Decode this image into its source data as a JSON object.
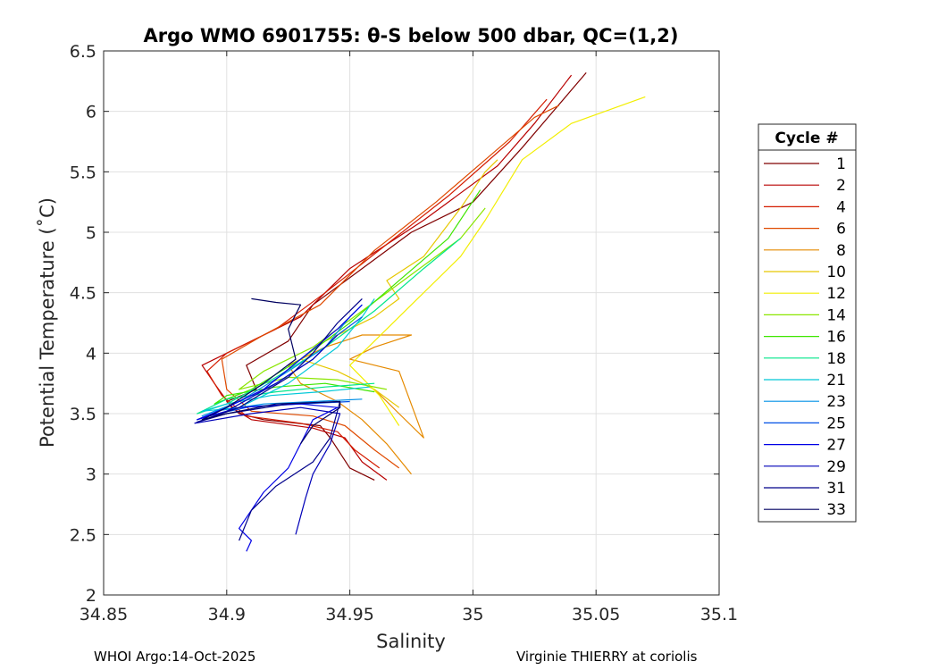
{
  "chart_data": {
    "type": "line",
    "title": "Argo WMO 6901755: θ-S below 500 dbar,  QC=(1,2)",
    "xlabel": "Salinity",
    "ylabel": "Potential Temperature (˚C)",
    "xlim": [
      34.85,
      35.1
    ],
    "ylim": [
      2,
      6.5
    ],
    "xticks": [
      34.85,
      34.9,
      34.95,
      35,
      35.05,
      35.1
    ],
    "xtick_labels": [
      "34.85",
      "34.9",
      "34.95",
      "35",
      "35.05",
      "35.1"
    ],
    "yticks": [
      2,
      2.5,
      3,
      3.5,
      4,
      4.5,
      5,
      5.5,
      6,
      6.5
    ],
    "ytick_labels": [
      "2",
      "2.5",
      "3",
      "3.5",
      "4",
      "4.5",
      "5",
      "5.5",
      "6",
      "6.5"
    ],
    "grid": true,
    "legend": {
      "title": "Cycle #",
      "placement": "outside-right"
    },
    "series": [
      {
        "name": "1",
        "color": "#800000",
        "points": [
          [
            34.96,
            2.95
          ],
          [
            34.95,
            3.05
          ],
          [
            34.942,
            3.3
          ],
          [
            34.938,
            3.4
          ],
          [
            34.915,
            3.45
          ],
          [
            34.905,
            3.5
          ],
          [
            34.9,
            3.6
          ],
          [
            34.912,
            3.7
          ],
          [
            34.908,
            3.9
          ],
          [
            34.925,
            4.1
          ],
          [
            34.935,
            4.4
          ],
          [
            34.955,
            4.7
          ],
          [
            34.975,
            5.0
          ],
          [
            35.0,
            5.25
          ],
          [
            35.02,
            5.7
          ],
          [
            35.046,
            6.32
          ]
        ]
      },
      {
        "name": "2",
        "color": "#b80000",
        "points": [
          [
            34.965,
            2.95
          ],
          [
            34.955,
            3.1
          ],
          [
            34.948,
            3.3
          ],
          [
            34.935,
            3.38
          ],
          [
            34.91,
            3.45
          ],
          [
            34.902,
            3.55
          ],
          [
            34.895,
            3.75
          ],
          [
            34.89,
            3.9
          ],
          [
            34.905,
            4.05
          ],
          [
            34.93,
            4.3
          ],
          [
            34.95,
            4.7
          ],
          [
            34.98,
            5.1
          ],
          [
            35.01,
            5.55
          ],
          [
            35.025,
            5.9
          ],
          [
            35.04,
            6.3
          ]
        ]
      },
      {
        "name": "4",
        "color": "#d41c00",
        "points": [
          [
            34.962,
            3.05
          ],
          [
            34.952,
            3.2
          ],
          [
            34.945,
            3.35
          ],
          [
            34.93,
            3.42
          ],
          [
            34.908,
            3.48
          ],
          [
            34.898,
            3.65
          ],
          [
            34.892,
            3.85
          ],
          [
            34.9,
            4.0
          ],
          [
            34.92,
            4.2
          ],
          [
            34.94,
            4.5
          ],
          [
            34.965,
            4.9
          ],
          [
            34.99,
            5.3
          ],
          [
            35.015,
            5.75
          ],
          [
            35.03,
            6.1
          ]
        ]
      },
      {
        "name": "6",
        "color": "#df4a00",
        "points": [
          [
            34.97,
            3.05
          ],
          [
            34.96,
            3.2
          ],
          [
            34.948,
            3.4
          ],
          [
            34.935,
            3.48
          ],
          [
            34.91,
            3.52
          ],
          [
            34.9,
            3.7
          ],
          [
            34.898,
            3.95
          ],
          [
            34.915,
            4.15
          ],
          [
            34.938,
            4.4
          ],
          [
            34.96,
            4.85
          ],
          [
            34.985,
            5.25
          ],
          [
            35.005,
            5.6
          ],
          [
            35.025,
            5.95
          ],
          [
            35.035,
            6.05
          ]
        ]
      },
      {
        "name": "8",
        "color": "#e58a00",
        "points": [
          [
            34.975,
            3.0
          ],
          [
            34.965,
            3.25
          ],
          [
            34.955,
            3.45
          ],
          [
            34.945,
            3.6
          ],
          [
            34.93,
            3.75
          ],
          [
            34.925,
            3.9
          ],
          [
            34.94,
            4.05
          ],
          [
            34.955,
            4.15
          ],
          [
            34.975,
            4.15
          ],
          [
            34.96,
            4.05
          ],
          [
            34.95,
            3.95
          ],
          [
            34.97,
            3.85
          ],
          [
            34.98,
            3.3
          ],
          [
            34.97,
            3.5
          ],
          [
            34.96,
            3.7
          ]
        ]
      },
      {
        "name": "10",
        "color": "#e6c800",
        "points": [
          [
            34.97,
            3.55
          ],
          [
            34.96,
            3.7
          ],
          [
            34.945,
            3.85
          ],
          [
            34.93,
            3.95
          ],
          [
            34.94,
            4.1
          ],
          [
            34.96,
            4.3
          ],
          [
            34.97,
            4.45
          ],
          [
            34.965,
            4.6
          ],
          [
            34.98,
            4.8
          ],
          [
            34.995,
            5.2
          ],
          [
            35.005,
            5.5
          ],
          [
            35.01,
            5.6
          ]
        ]
      },
      {
        "name": "12",
        "color": "#f2ee00",
        "points": [
          [
            34.97,
            3.4
          ],
          [
            34.962,
            3.65
          ],
          [
            34.95,
            3.9
          ],
          [
            34.96,
            4.1
          ],
          [
            34.975,
            4.4
          ],
          [
            34.995,
            4.8
          ],
          [
            35.005,
            5.1
          ],
          [
            35.02,
            5.6
          ],
          [
            35.04,
            5.9
          ],
          [
            35.07,
            6.12
          ]
        ]
      },
      {
        "name": "14",
        "color": "#8ae600",
        "points": [
          [
            34.965,
            3.7
          ],
          [
            34.945,
            3.78
          ],
          [
            34.925,
            3.8
          ],
          [
            34.915,
            3.75
          ],
          [
            34.905,
            3.7
          ],
          [
            34.915,
            3.85
          ],
          [
            34.935,
            4.05
          ],
          [
            34.955,
            4.35
          ],
          [
            34.975,
            4.65
          ],
          [
            34.995,
            4.95
          ],
          [
            35.005,
            5.2
          ]
        ]
      },
      {
        "name": "16",
        "color": "#3ee600",
        "points": [
          [
            34.96,
            3.68
          ],
          [
            34.94,
            3.75
          ],
          [
            34.92,
            3.72
          ],
          [
            34.9,
            3.65
          ],
          [
            34.895,
            3.58
          ],
          [
            34.91,
            3.7
          ],
          [
            34.93,
            3.95
          ],
          [
            34.95,
            4.25
          ],
          [
            34.97,
            4.6
          ],
          [
            34.99,
            4.95
          ],
          [
            35.003,
            5.35
          ]
        ]
      },
      {
        "name": "18",
        "color": "#00e68a",
        "points": [
          [
            34.96,
            3.75
          ],
          [
            34.94,
            3.72
          ],
          [
            34.92,
            3.68
          ],
          [
            34.9,
            3.62
          ],
          [
            34.888,
            3.5
          ],
          [
            34.9,
            3.58
          ],
          [
            34.92,
            3.8
          ],
          [
            34.94,
            4.05
          ],
          [
            34.96,
            4.35
          ],
          [
            34.98,
            4.7
          ],
          [
            34.995,
            4.95
          ]
        ]
      },
      {
        "name": "21",
        "color": "#00c8d8",
        "points": [
          [
            34.958,
            3.72
          ],
          [
            34.938,
            3.68
          ],
          [
            34.918,
            3.65
          ],
          [
            34.9,
            3.58
          ],
          [
            34.89,
            3.52
          ],
          [
            34.905,
            3.55
          ],
          [
            34.925,
            3.75
          ],
          [
            34.945,
            4.05
          ],
          [
            34.955,
            4.3
          ],
          [
            34.96,
            4.45
          ]
        ]
      },
      {
        "name": "23",
        "color": "#0090e6",
        "points": [
          [
            34.955,
            3.62
          ],
          [
            34.935,
            3.6
          ],
          [
            34.915,
            3.58
          ],
          [
            34.895,
            3.52
          ],
          [
            34.89,
            3.48
          ],
          [
            34.905,
            3.6
          ],
          [
            34.925,
            3.85
          ],
          [
            34.94,
            4.05
          ],
          [
            34.95,
            4.3
          ],
          [
            34.955,
            4.4
          ]
        ]
      },
      {
        "name": "25",
        "color": "#0050e6",
        "points": [
          [
            34.95,
            3.6
          ],
          [
            34.93,
            3.58
          ],
          [
            34.91,
            3.56
          ],
          [
            34.892,
            3.48
          ],
          [
            34.888,
            3.45
          ],
          [
            34.9,
            3.55
          ],
          [
            34.92,
            3.75
          ],
          [
            34.935,
            3.95
          ],
          [
            34.945,
            4.15
          ],
          [
            34.955,
            4.3
          ]
        ]
      },
      {
        "name": "27",
        "color": "#0000e6",
        "points": [
          [
            34.908,
            2.36
          ],
          [
            34.91,
            2.45
          ],
          [
            34.905,
            2.55
          ],
          [
            34.915,
            2.85
          ],
          [
            34.925,
            3.05
          ],
          [
            34.93,
            3.25
          ],
          [
            34.935,
            3.45
          ],
          [
            34.945,
            3.55
          ],
          [
            34.93,
            3.58
          ],
          [
            34.905,
            3.55
          ],
          [
            34.888,
            3.45
          ],
          [
            34.9,
            3.55
          ],
          [
            34.915,
            3.7
          ],
          [
            34.93,
            3.95
          ],
          [
            34.945,
            4.2
          ],
          [
            34.955,
            4.4
          ]
        ]
      },
      {
        "name": "29",
        "color": "#0000b8",
        "points": [
          [
            34.928,
            2.5
          ],
          [
            34.932,
            2.8
          ],
          [
            34.935,
            3.0
          ],
          [
            34.942,
            3.25
          ],
          [
            34.946,
            3.5
          ],
          [
            34.93,
            3.55
          ],
          [
            34.91,
            3.5
          ],
          [
            34.887,
            3.42
          ],
          [
            34.9,
            3.52
          ],
          [
            34.92,
            3.75
          ],
          [
            34.935,
            3.95
          ],
          [
            34.945,
            4.15
          ]
        ]
      },
      {
        "name": "31",
        "color": "#00008a",
        "points": [
          [
            34.905,
            2.45
          ],
          [
            34.91,
            2.7
          ],
          [
            34.92,
            2.9
          ],
          [
            34.935,
            3.1
          ],
          [
            34.942,
            3.3
          ],
          [
            34.946,
            3.6
          ],
          [
            34.925,
            3.58
          ],
          [
            34.9,
            3.5
          ],
          [
            34.888,
            3.43
          ],
          [
            34.905,
            3.55
          ],
          [
            34.925,
            3.8
          ],
          [
            34.935,
            4.0
          ],
          [
            34.945,
            4.25
          ],
          [
            34.955,
            4.45
          ]
        ]
      },
      {
        "name": "33",
        "color": "#000060",
        "points": [
          [
            34.93,
            3.25
          ],
          [
            34.935,
            3.4
          ],
          [
            34.946,
            3.55
          ],
          [
            34.946,
            3.6
          ],
          [
            34.92,
            3.58
          ],
          [
            34.9,
            3.5
          ],
          [
            34.89,
            3.45
          ],
          [
            34.9,
            3.55
          ],
          [
            34.915,
            3.75
          ],
          [
            34.928,
            3.95
          ],
          [
            34.925,
            4.2
          ],
          [
            34.93,
            4.4
          ],
          [
            34.92,
            4.42
          ],
          [
            34.91,
            4.45
          ]
        ]
      }
    ]
  },
  "footer": {
    "left": "WHOI Argo:14-Oct-2025",
    "right": "Virginie THIERRY at coriolis"
  }
}
